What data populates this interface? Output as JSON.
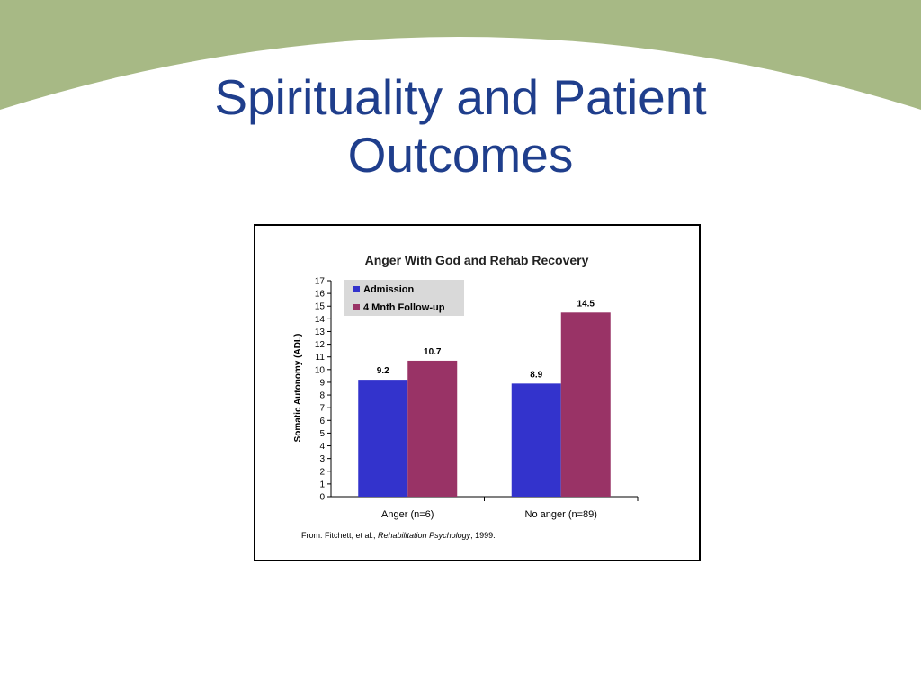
{
  "slide": {
    "title_line1": "Spirituality and Patient",
    "title_line2": "Outcomes"
  },
  "colors": {
    "header_band": "#a7b985",
    "title": "#1f3e8c",
    "admission": "#3333cc",
    "followup": "#993366",
    "legend_bg": "#d9d9d9"
  },
  "chart_data": {
    "type": "bar",
    "title": "Anger With God and Rehab Recovery",
    "xlabel": "",
    "ylabel": "Somatic Autonomy (ADL)",
    "categories": [
      "Anger (n=6)",
      "No anger (n=89)"
    ],
    "series": [
      {
        "name": "Admission",
        "values": [
          9.2,
          8.9
        ],
        "labels": [
          "9.2",
          "8.9"
        ]
      },
      {
        "name": "4 Mnth Follow-up",
        "values": [
          10.7,
          14.5
        ],
        "labels": [
          "10.7",
          "14.5"
        ]
      }
    ],
    "ylim": [
      0,
      17
    ],
    "yticks": [
      0,
      1,
      2,
      3,
      4,
      5,
      6,
      7,
      8,
      9,
      10,
      11,
      12,
      13,
      14,
      15,
      16,
      17
    ],
    "legend": "top-left",
    "grid": false
  },
  "source": {
    "prefix": "From: Fitchett, et al., ",
    "journal": "Rehabilitation Psychology",
    "suffix": ", 1999."
  }
}
